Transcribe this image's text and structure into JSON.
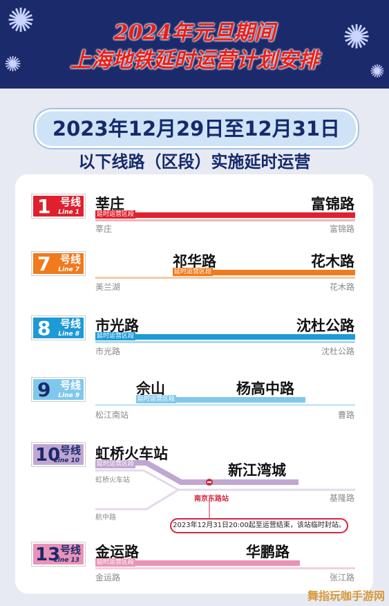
{
  "header": {
    "title_line1": "2024年元旦期间",
    "title_line2": "上海地铁延时运营计划安排"
  },
  "date_range": "2023年12月29日至12月31日",
  "subtitle": "以下线路（区段）实施延时运营",
  "segment_label": "延时运营区段",
  "lines": [
    {
      "number": "1",
      "suffix": "号线",
      "en": "Line 1",
      "color": "#e0202e",
      "from": "莘庄",
      "to": "富锦路",
      "terminal_left": "莘庄",
      "terminal_right": "富锦路"
    },
    {
      "number": "7",
      "suffix": "号线",
      "en": "Line 7",
      "color": "#f07a1d",
      "from": "祁华路",
      "to": "花木路",
      "terminal_left": "美兰湖",
      "terminal_right": "花木路"
    },
    {
      "number": "8",
      "suffix": "号线",
      "en": "Line 8",
      "color": "#1e9ad6",
      "from": "市光路",
      "to": "沈杜公路",
      "terminal_left": "市光路",
      "terminal_right": "沈杜公路"
    },
    {
      "number": "9",
      "suffix": "号线",
      "en": "Line 9",
      "color": "#7fc8ec",
      "from": "佘山",
      "to": "杨高中路",
      "terminal_left": "松江南站",
      "terminal_right": "曹路"
    },
    {
      "number": "10",
      "suffix": "号线",
      "en": "Line 10",
      "color": "#c1a6d2",
      "from": "虹桥火车站",
      "to": "新江湾城",
      "terminal_left": "虹桥火车站",
      "terminal_right": "基隆路",
      "branch_terminal": "航中路",
      "closed_station": "南京东路站",
      "note": "2023年12月31日20:00起至运营结束，该站临时封站。"
    },
    {
      "number": "13",
      "suffix": "号线",
      "en": "Line 13",
      "color": "#e993b8",
      "from": "金运路",
      "to": "华鹏路",
      "terminal_left": "金运路",
      "terminal_right": "张江路"
    }
  ],
  "watermark": "舞指玩咖手游网"
}
